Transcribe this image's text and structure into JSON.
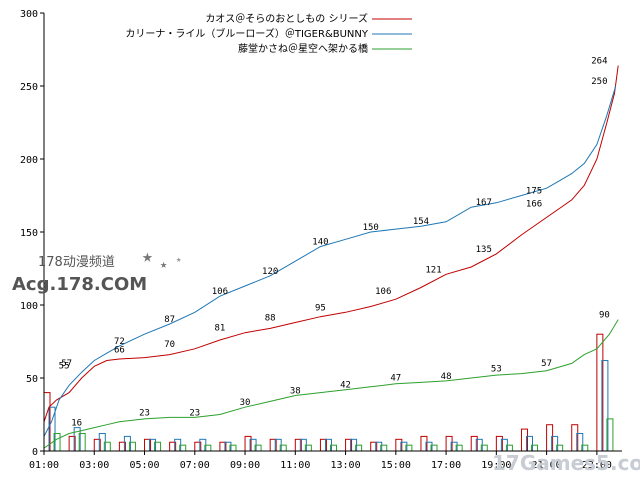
{
  "chart_data": {
    "type": "line",
    "title": "",
    "xlabel": "",
    "ylabel": "",
    "xlim": [
      "01:00",
      "24:00"
    ],
    "ylim": [
      0,
      300
    ],
    "y_ticks": [
      0,
      50,
      100,
      150,
      200,
      250,
      300
    ],
    "x_ticks": [
      "01:00",
      "03:00",
      "05:00",
      "07:00",
      "09:00",
      "11:00",
      "13:00",
      "15:00",
      "17:00",
      "19:00",
      "21:00",
      "23:00"
    ],
    "grid": false,
    "legend_position": "top-right",
    "series": [
      {
        "name": "カオス＠そらのおとしもの シリーズ",
        "color": "#c00000",
        "points": [
          [
            1.0,
            20
          ],
          [
            1.2,
            30
          ],
          [
            1.5,
            35
          ],
          [
            2.0,
            40
          ],
          [
            2.5,
            50
          ],
          [
            3.0,
            58
          ],
          [
            3.5,
            62
          ],
          [
            4.0,
            63
          ],
          [
            5.0,
            64
          ],
          [
            6.0,
            66
          ],
          [
            7.0,
            70
          ],
          [
            8.0,
            76
          ],
          [
            9.0,
            81
          ],
          [
            10.0,
            84
          ],
          [
            11.0,
            88
          ],
          [
            12.0,
            92
          ],
          [
            13.0,
            95
          ],
          [
            14.0,
            99
          ],
          [
            15.0,
            104
          ],
          [
            16.0,
            112
          ],
          [
            17.0,
            121
          ],
          [
            18.0,
            126
          ],
          [
            19.0,
            135
          ],
          [
            20.0,
            148
          ],
          [
            21.0,
            160
          ],
          [
            21.5,
            166
          ],
          [
            22.0,
            172
          ],
          [
            22.5,
            182
          ],
          [
            23.0,
            200
          ],
          [
            23.4,
            225
          ],
          [
            23.7,
            245
          ],
          [
            23.85,
            264
          ]
        ],
        "labels": [
          {
            "x": 1.8,
            "y": 55,
            "text": "55"
          },
          {
            "x": 4.0,
            "y": 66,
            "text": "66"
          },
          {
            "x": 6.0,
            "y": 70,
            "text": "70"
          },
          {
            "x": 8.0,
            "y": 81,
            "text": "81"
          },
          {
            "x": 10.0,
            "y": 88,
            "text": "88"
          },
          {
            "x": 12.0,
            "y": 95,
            "text": "95"
          },
          {
            "x": 14.5,
            "y": 106,
            "text": "106"
          },
          {
            "x": 16.5,
            "y": 121,
            "text": "121"
          },
          {
            "x": 18.5,
            "y": 135,
            "text": "135"
          },
          {
            "x": 20.5,
            "y": 166,
            "text": "166"
          },
          {
            "x": 23.1,
            "y": 264,
            "text": "264"
          }
        ],
        "bars": [
          [
            1.0,
            40
          ],
          [
            2.0,
            10
          ],
          [
            3.0,
            8
          ],
          [
            4.0,
            6
          ],
          [
            5.0,
            8
          ],
          [
            6.0,
            6
          ],
          [
            7.0,
            6
          ],
          [
            8.0,
            6
          ],
          [
            9.0,
            10
          ],
          [
            10.0,
            8
          ],
          [
            11.0,
            8
          ],
          [
            12.0,
            8
          ],
          [
            13.0,
            8
          ],
          [
            14.0,
            6
          ],
          [
            15.0,
            8
          ],
          [
            16.0,
            10
          ],
          [
            17.0,
            10
          ],
          [
            18.0,
            10
          ],
          [
            19.0,
            10
          ],
          [
            20.0,
            15
          ],
          [
            21.0,
            18
          ],
          [
            22.0,
            18
          ],
          [
            23.0,
            80
          ]
        ]
      },
      {
        "name": "カリーナ・ライル（ブルーローズ）＠TIGER&BUNNY",
        "color": "#1f77b4",
        "points": [
          [
            1.0,
            10
          ],
          [
            1.3,
            20
          ],
          [
            1.6,
            35
          ],
          [
            2.0,
            45
          ],
          [
            2.5,
            54
          ],
          [
            3.0,
            62
          ],
          [
            3.5,
            67
          ],
          [
            4.0,
            72
          ],
          [
            5.0,
            80
          ],
          [
            6.0,
            87
          ],
          [
            7.0,
            95
          ],
          [
            8.0,
            106
          ],
          [
            9.0,
            113
          ],
          [
            10.0,
            120
          ],
          [
            11.0,
            130
          ],
          [
            12.0,
            140
          ],
          [
            13.0,
            145
          ],
          [
            14.0,
            150
          ],
          [
            15.0,
            152
          ],
          [
            16.0,
            154
          ],
          [
            17.0,
            157
          ],
          [
            18.0,
            167
          ],
          [
            19.0,
            170
          ],
          [
            20.0,
            175
          ],
          [
            21.0,
            180
          ],
          [
            21.5,
            185
          ],
          [
            22.0,
            190
          ],
          [
            22.5,
            197
          ],
          [
            23.0,
            210
          ],
          [
            23.4,
            230
          ],
          [
            23.75,
            250
          ]
        ],
        "labels": [
          {
            "x": 1.9,
            "y": 57,
            "text": "57"
          },
          {
            "x": 4.0,
            "y": 72,
            "text": "72"
          },
          {
            "x": 6.0,
            "y": 87,
            "text": "87"
          },
          {
            "x": 8.0,
            "y": 106,
            "text": "106"
          },
          {
            "x": 10.0,
            "y": 120,
            "text": "120"
          },
          {
            "x": 12.0,
            "y": 140,
            "text": "140"
          },
          {
            "x": 14.0,
            "y": 150,
            "text": "150"
          },
          {
            "x": 16.0,
            "y": 154,
            "text": "154"
          },
          {
            "x": 18.5,
            "y": 167,
            "text": "167"
          },
          {
            "x": 20.5,
            "y": 175,
            "text": "175"
          },
          {
            "x": 23.1,
            "y": 250,
            "text": "250"
          }
        ],
        "bars": [
          [
            1.2,
            30
          ],
          [
            2.2,
            16
          ],
          [
            3.2,
            12
          ],
          [
            4.2,
            10
          ],
          [
            5.2,
            8
          ],
          [
            6.2,
            8
          ],
          [
            7.2,
            8
          ],
          [
            8.2,
            6
          ],
          [
            9.2,
            8
          ],
          [
            10.2,
            8
          ],
          [
            11.2,
            8
          ],
          [
            12.2,
            8
          ],
          [
            13.2,
            8
          ],
          [
            14.2,
            6
          ],
          [
            15.2,
            6
          ],
          [
            16.2,
            6
          ],
          [
            17.2,
            6
          ],
          [
            18.2,
            8
          ],
          [
            19.2,
            8
          ],
          [
            20.2,
            10
          ],
          [
            21.2,
            10
          ],
          [
            22.2,
            12
          ],
          [
            23.2,
            62
          ]
        ]
      },
      {
        "name": "藤堂かさね＠星空へ架かる橋",
        "color": "#2ca02c",
        "points": [
          [
            1.0,
            2
          ],
          [
            1.5,
            8
          ],
          [
            2.0,
            12
          ],
          [
            2.5,
            14
          ],
          [
            3.0,
            16
          ],
          [
            3.5,
            18
          ],
          [
            4.0,
            20
          ],
          [
            5.0,
            22
          ],
          [
            6.0,
            23
          ],
          [
            7.0,
            23
          ],
          [
            8.0,
            25
          ],
          [
            9.0,
            30
          ],
          [
            10.0,
            34
          ],
          [
            11.0,
            38
          ],
          [
            12.0,
            40
          ],
          [
            13.0,
            42
          ],
          [
            14.0,
            44
          ],
          [
            15.0,
            46
          ],
          [
            16.0,
            47
          ],
          [
            17.0,
            48
          ],
          [
            18.0,
            50
          ],
          [
            19.0,
            52
          ],
          [
            20.0,
            53
          ],
          [
            21.0,
            55
          ],
          [
            22.0,
            60
          ],
          [
            22.5,
            66
          ],
          [
            23.0,
            70
          ],
          [
            23.5,
            80
          ],
          [
            23.85,
            90
          ]
        ],
        "labels": [
          {
            "x": 2.3,
            "y": 16,
            "text": "16"
          },
          {
            "x": 5.0,
            "y": 23,
            "text": "23"
          },
          {
            "x": 7.0,
            "y": 23,
            "text": "23"
          },
          {
            "x": 9.0,
            "y": 30,
            "text": "30"
          },
          {
            "x": 11.0,
            "y": 38,
            "text": "38"
          },
          {
            "x": 13.0,
            "y": 42,
            "text": "42"
          },
          {
            "x": 15.0,
            "y": 47,
            "text": "47"
          },
          {
            "x": 17.0,
            "y": 48,
            "text": "48"
          },
          {
            "x": 19.0,
            "y": 53,
            "text": "53"
          },
          {
            "x": 21.0,
            "y": 57,
            "text": "57"
          },
          {
            "x": 23.3,
            "y": 90,
            "text": "90"
          }
        ],
        "bars": [
          [
            1.4,
            12
          ],
          [
            2.4,
            12
          ],
          [
            3.4,
            6
          ],
          [
            4.4,
            6
          ],
          [
            5.4,
            6
          ],
          [
            6.4,
            4
          ],
          [
            7.4,
            4
          ],
          [
            8.4,
            4
          ],
          [
            9.4,
            4
          ],
          [
            10.4,
            4
          ],
          [
            11.4,
            4
          ],
          [
            12.4,
            4
          ],
          [
            13.4,
            4
          ],
          [
            14.4,
            4
          ],
          [
            15.4,
            4
          ],
          [
            16.4,
            4
          ],
          [
            17.4,
            4
          ],
          [
            18.4,
            4
          ],
          [
            19.4,
            4
          ],
          [
            20.4,
            4
          ],
          [
            21.4,
            4
          ],
          [
            22.4,
            4
          ],
          [
            23.4,
            22
          ]
        ]
      }
    ]
  },
  "watermark": {
    "logo_line1": "178动漫频道",
    "logo_line2": "Acg.178.COM",
    "site": "17Games5.com"
  }
}
